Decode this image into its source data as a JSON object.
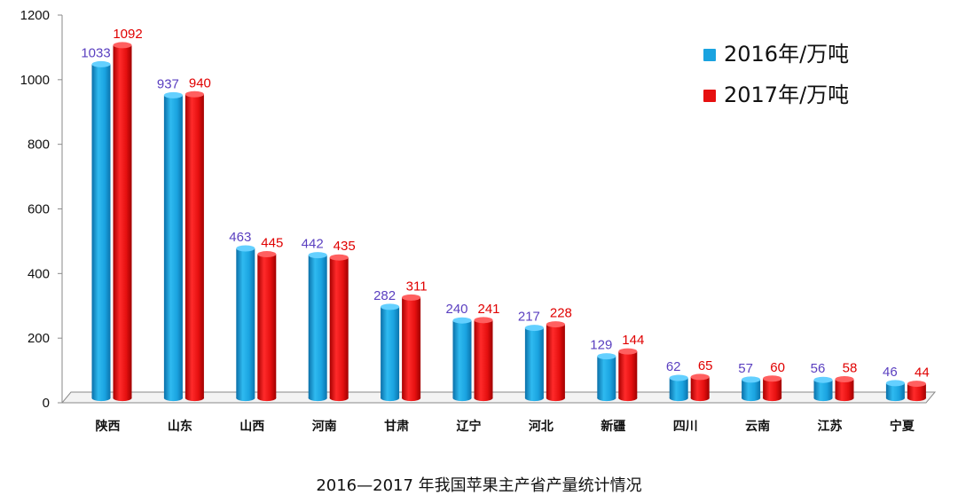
{
  "chart_data": {
    "type": "bar",
    "title": "",
    "caption": "2016—2017 年我国苹果主产省产量统计情况",
    "xlabel": "",
    "ylabel": "",
    "ylim": [
      0,
      1200
    ],
    "yticks": [
      0,
      200,
      400,
      600,
      800,
      1000,
      1200
    ],
    "categories": [
      "陕西",
      "山东",
      "山西",
      "河南",
      "甘肃",
      "辽宁",
      "河北",
      "新疆",
      "四川",
      "云南",
      "江苏",
      "宁夏"
    ],
    "series": [
      {
        "name": "2016年/万吨",
        "color": "#1aa3e0",
        "label_color": "#5a3fc0",
        "values": [
          1033,
          937,
          463,
          442,
          282,
          240,
          217,
          129,
          62,
          57,
          56,
          46
        ]
      },
      {
        "name": "2017年/万吨",
        "color": "#e61010",
        "label_color": "#e00000",
        "values": [
          1092,
          940,
          445,
          435,
          311,
          241,
          228,
          144,
          65,
          60,
          58,
          44
        ]
      }
    ],
    "legend": "top-right",
    "grid": false
  }
}
